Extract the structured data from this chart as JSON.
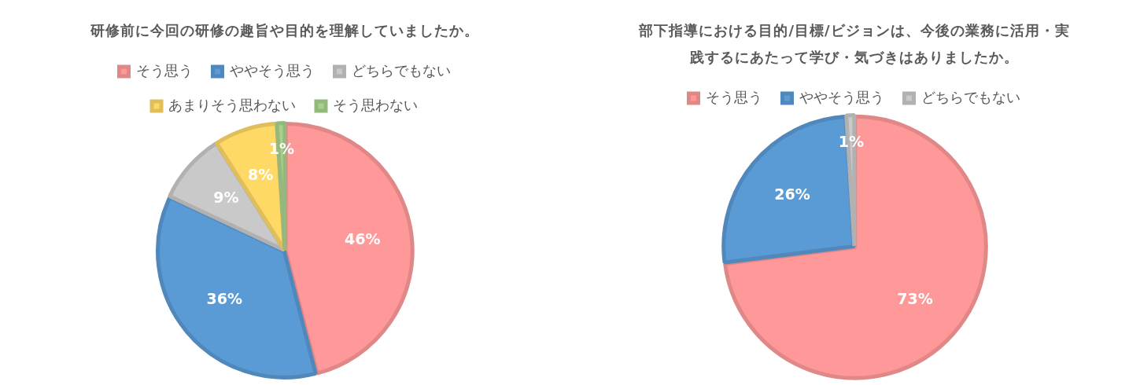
{
  "chart_data": [
    {
      "type": "pie",
      "title": "研修前に今回の研修の趣旨や目的を理解していましたか。",
      "categories": [
        "そう思う",
        "ややそう思う",
        "どちらでもない",
        "あまりそう思わない",
        "そう思わない"
      ],
      "values": [
        46,
        36,
        9,
        8,
        1
      ],
      "colors": [
        "#ff9999",
        "#5b9bd5",
        "#c9c9c9",
        "#ffd966",
        "#a9d18e"
      ],
      "legend": "top",
      "value_labels": [
        "46%",
        "36%",
        "9%",
        "8%",
        "1%"
      ]
    },
    {
      "type": "pie",
      "title": "部下指導における目的/目標/ビジョンは、今後の業務に活用・実践するにあたって学び・気づきはありましたか。",
      "categories": [
        "そう思う",
        "ややそう思う",
        "どちらでもない"
      ],
      "values": [
        73,
        26,
        1
      ],
      "colors": [
        "#ff9999",
        "#5b9bd5",
        "#c9c9c9"
      ],
      "legend": "top",
      "value_labels": [
        "73%",
        "26%",
        "1%"
      ]
    }
  ]
}
